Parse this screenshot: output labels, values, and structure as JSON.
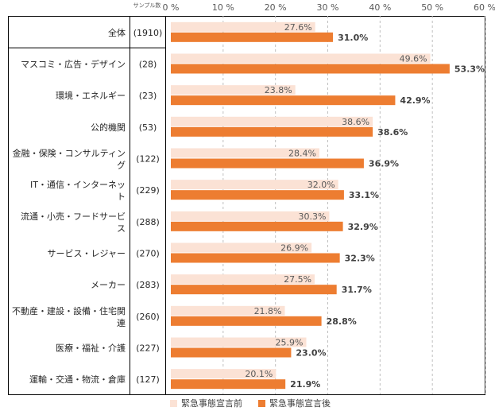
{
  "chart_data": {
    "type": "bar",
    "orientation": "horizontal",
    "sample_header": "サンプル数",
    "x_ticks": [
      "0 %",
      "10 %",
      "20 %",
      "30 %",
      "40 %",
      "50 %",
      "60 %"
    ],
    "xlim": [
      0,
      60
    ],
    "categories": [
      {
        "label": "全体",
        "n": "(1910)"
      },
      {
        "label": "マスコミ・広告・デザイン",
        "n": "(28)"
      },
      {
        "label": "環境・エネルギー",
        "n": "(23)"
      },
      {
        "label": "公的機関",
        "n": "(53)"
      },
      {
        "label": "金融・保険・コンサルティング",
        "n": "(122)"
      },
      {
        "label": "IT・通信・インターネット",
        "n": "(229)"
      },
      {
        "label": "流通・小売・フードサービス",
        "n": "(288)"
      },
      {
        "label": "サービス・レジャー",
        "n": "(270)"
      },
      {
        "label": "メーカー",
        "n": "(283)"
      },
      {
        "label": "不動産・建設・設備・住宅関連",
        "n": "(260)"
      },
      {
        "label": "医療・福祉・介護",
        "n": "(227)"
      },
      {
        "label": "運輸・交通・物流・倉庫",
        "n": "(127)"
      }
    ],
    "series": [
      {
        "name": "緊急事態宣言前",
        "color": "#fbe2d5",
        "values": [
          27.6,
          49.6,
          23.8,
          38.6,
          28.4,
          32.0,
          30.3,
          26.9,
          27.5,
          21.8,
          25.9,
          20.1
        ],
        "labels": [
          "27.6%",
          "49.6%",
          "23.8%",
          "38.6%",
          "28.4%",
          "32.0%",
          "30.3%",
          "26.9%",
          "27.5%",
          "21.8%",
          "25.9%",
          "20.1%"
        ]
      },
      {
        "name": "緊急事態宣言後",
        "color": "#ed7d31",
        "values": [
          31.0,
          53.3,
          42.9,
          38.6,
          36.9,
          33.1,
          32.9,
          32.3,
          31.7,
          28.8,
          23.0,
          21.9
        ],
        "labels": [
          "31.0%",
          "53.3%",
          "42.9%",
          "38.6%",
          "36.9%",
          "33.1%",
          "32.9%",
          "32.3%",
          "31.7%",
          "28.8%",
          "23.0%",
          "21.9%"
        ]
      }
    ],
    "grid": true,
    "legend_position": "bottom"
  }
}
